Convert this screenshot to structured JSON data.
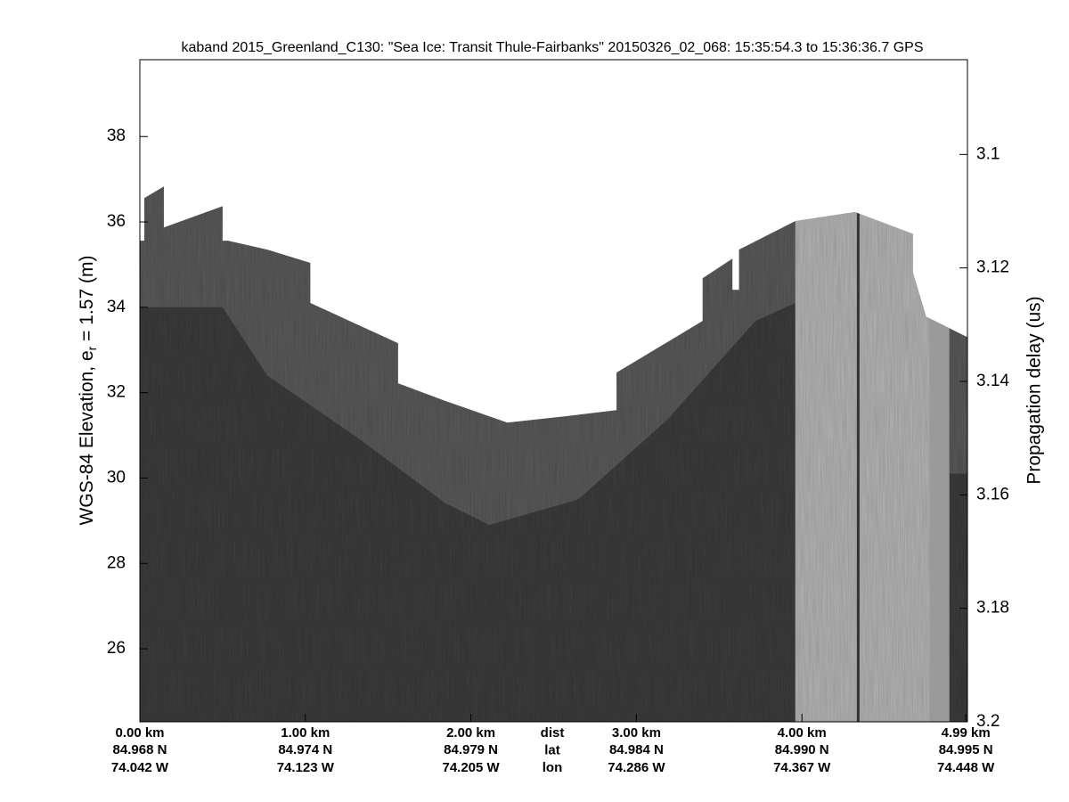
{
  "chart_data": {
    "type": "echogram",
    "title": "kaband 2015_Greenland_C130: \"Sea Ice: Transit Thule-Fairbanks\"  20150326_02_068: 15:35:54.3 to 15:36:36.7 GPS",
    "ylabel": "WGS-84 Elevation, e",
    "ylabel_sub": "r",
    "ylabel_rest": " = 1.57 (m)",
    "y2label": "Propagation delay (us)",
    "xlim": [
      0,
      5.0
    ],
    "ylim": [
      24.29,
      39.8
    ],
    "y2lim": [
      3.0833,
      3.2
    ],
    "yticks": [
      26,
      28,
      30,
      32,
      34,
      36,
      38
    ],
    "y2ticks": [
      3.1,
      3.12,
      3.14,
      3.16,
      3.18,
      3.2
    ],
    "xticks": [
      {
        "value": 0,
        "label": "0.00 km"
      },
      {
        "value": 1,
        "label": "1.00 km"
      },
      {
        "value": 2,
        "label": "2.00 km"
      },
      {
        "value": 3,
        "label": "3.00 km"
      },
      {
        "value": 4,
        "label": "4.00 km"
      },
      {
        "value": 4.99,
        "label": "4.99 km"
      }
    ],
    "x_lat": [
      "84.968 N",
      "84.974 N",
      "84.979 N",
      "84.984 N",
      "84.990 N",
      "84.995 N"
    ],
    "x_lon": [
      "74.042 W",
      "74.123 W",
      "74.205 W",
      "74.286 W",
      "74.367 W",
      "74.448 W"
    ],
    "row_labels": [
      "dist",
      "lat",
      "lon"
    ],
    "surface": {
      "x": [
        0,
        0.027,
        0.027,
        0.145,
        0.145,
        0.5,
        0.5,
        0.533,
        0.77,
        1.03,
        1.03,
        1.56,
        1.56,
        1.85,
        2.22,
        2.6,
        2.88,
        2.88,
        3.4,
        3.4,
        3.58,
        3.58,
        3.62,
        3.62,
        3.96,
        4.32,
        4.67,
        4.67,
        4.75,
        5.0
      ],
      "values": [
        35.56,
        35.56,
        36.56,
        36.83,
        35.87,
        36.37,
        35.56,
        35.56,
        35.35,
        35.04,
        34.1,
        33.16,
        32.22,
        31.8,
        31.3,
        31.46,
        31.59,
        32.47,
        33.68,
        34.68,
        35.14,
        34.41,
        34.41,
        35.35,
        36.02,
        36.23,
        35.72,
        34.82,
        33.78,
        33.3
      ]
    },
    "interface": {
      "x": [
        0,
        0.5,
        0.77,
        1.31,
        1.85,
        2.11,
        2.65,
        3.19,
        3.72,
        3.96,
        4.99,
        5.0
      ],
      "values": [
        34.0,
        34.0,
        32.4,
        30.96,
        29.4,
        28.9,
        29.5,
        31.38,
        33.68,
        34.1,
        null,
        30.1
      ]
    },
    "bright_band": [
      3.96,
      4.89
    ],
    "dark_line": 4.34
  }
}
